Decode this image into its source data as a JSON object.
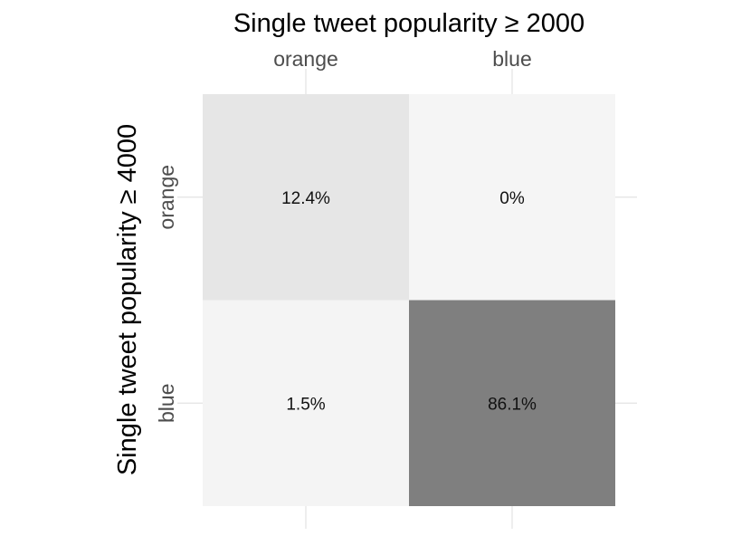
{
  "chart_data": {
    "type": "heatmap",
    "xlabel": "Single tweet popularity ≥ 2000",
    "ylabel": "Single tweet popularity ≥ 4000",
    "x_categories": [
      "orange",
      "blue"
    ],
    "y_categories": [
      "orange",
      "blue"
    ],
    "x_axis_position": "top",
    "grid": true,
    "legend": "none",
    "cells": [
      {
        "x": "orange",
        "y": "orange",
        "value": 12.4,
        "label": "12.4%",
        "color": "#e6e6e6"
      },
      {
        "x": "blue",
        "y": "orange",
        "value": 0,
        "label": "0%",
        "color": "#f5f5f5"
      },
      {
        "x": "orange",
        "y": "blue",
        "value": 1.5,
        "label": "1.5%",
        "color": "#f4f4f4"
      },
      {
        "x": "blue",
        "y": "blue",
        "value": 86.1,
        "label": "86.1%",
        "color": "#7f7f7f"
      }
    ]
  }
}
